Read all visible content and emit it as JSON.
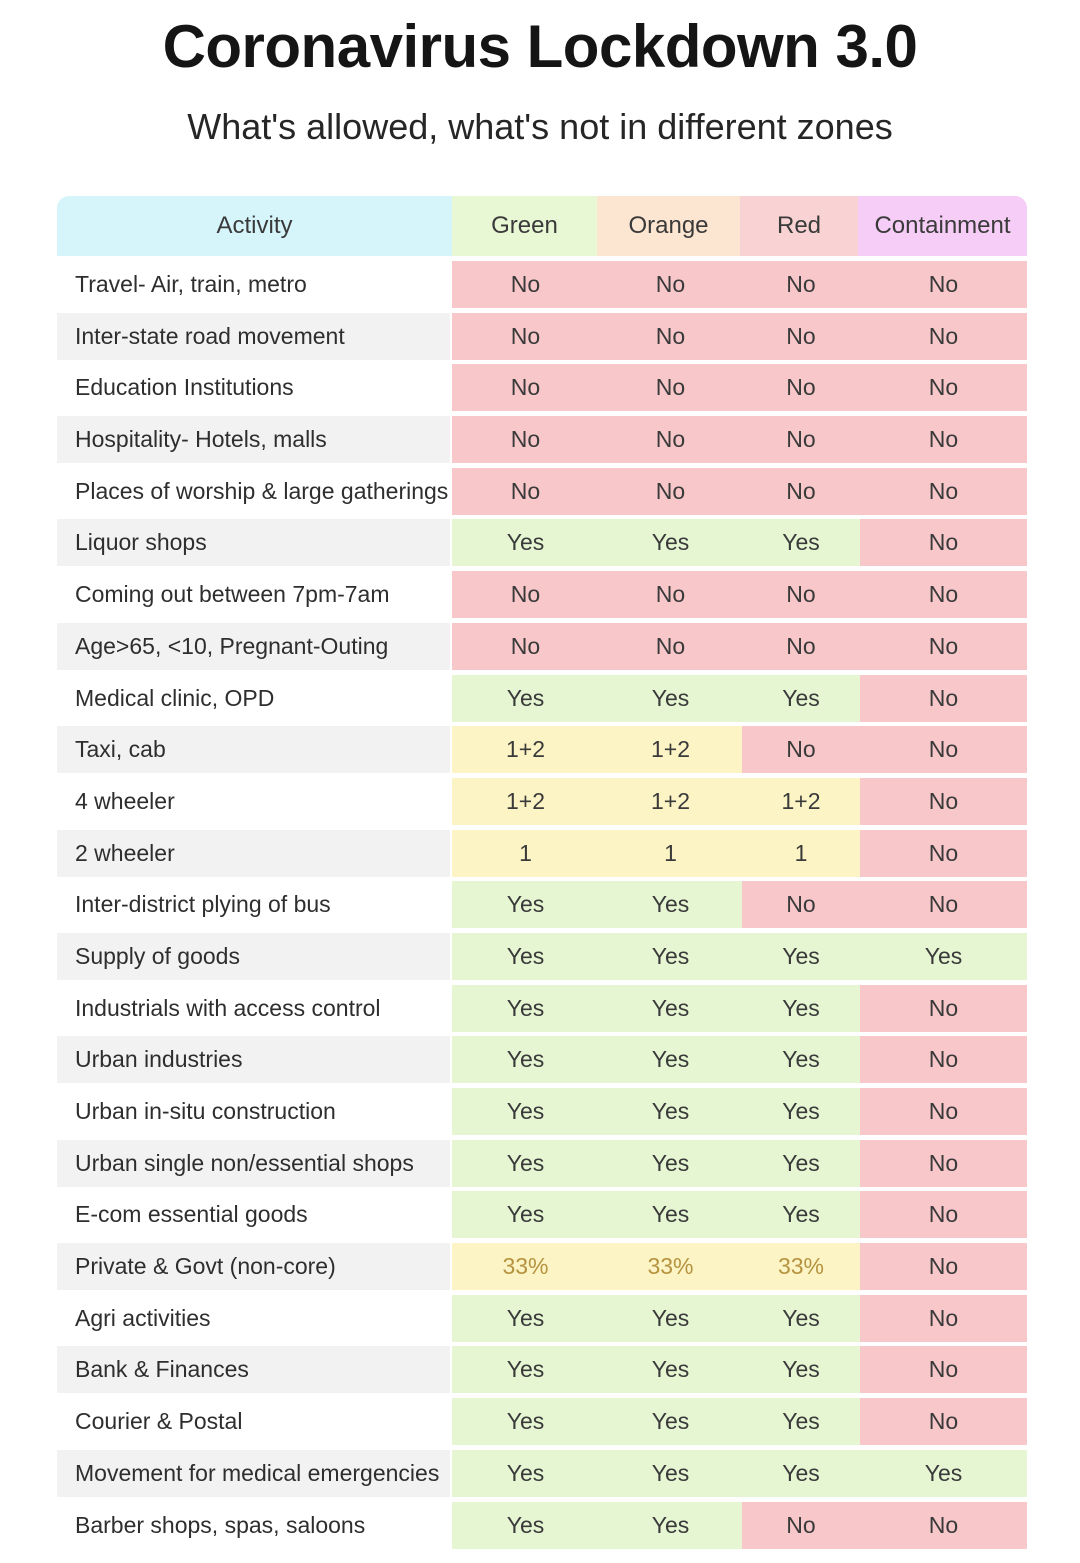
{
  "title": "Coronavirus Lockdown 3.0",
  "subtitle": "What's allowed, what's not in different zones",
  "headers": {
    "activity": "Activity",
    "green": "Green",
    "orange": "Orange",
    "red": "Red",
    "containment": "Containment"
  },
  "colors": {
    "no": "#f8c7ca",
    "yes": "#e6f6d3",
    "limited": "#fcf4c4"
  },
  "rows": [
    {
      "activity": "Travel- Air, train, metro",
      "values": [
        "No",
        "No",
        "No",
        "No"
      ]
    },
    {
      "activity": "Inter-state road movement",
      "values": [
        "No",
        "No",
        "No",
        "No"
      ]
    },
    {
      "activity": "Education Institutions",
      "values": [
        "No",
        "No",
        "No",
        "No"
      ]
    },
    {
      "activity": "Hospitality- Hotels, malls",
      "values": [
        "No",
        "No",
        "No",
        "No"
      ]
    },
    {
      "activity": "Places of worship & large gatherings",
      "values": [
        "No",
        "No",
        "No",
        "No"
      ]
    },
    {
      "activity": "Liquor shops",
      "values": [
        "Yes",
        "Yes",
        "Yes",
        "No"
      ]
    },
    {
      "activity": "Coming out between 7pm-7am",
      "values": [
        "No",
        "No",
        "No",
        "No"
      ]
    },
    {
      "activity": "Age>65, <10, Pregnant-Outing",
      "values": [
        "No",
        "No",
        "No",
        "No"
      ]
    },
    {
      "activity": "Medical clinic, OPD",
      "values": [
        "Yes",
        "Yes",
        "Yes",
        "No"
      ]
    },
    {
      "activity": "Taxi, cab",
      "values": [
        "1+2",
        "1+2",
        "No",
        "No"
      ]
    },
    {
      "activity": "4 wheeler",
      "values": [
        "1+2",
        "1+2",
        "1+2",
        "No"
      ]
    },
    {
      "activity": "2 wheeler",
      "values": [
        "1",
        "1",
        "1",
        "No"
      ]
    },
    {
      "activity": "Inter-district plying of bus",
      "values": [
        "Yes",
        "Yes",
        "No",
        "No"
      ]
    },
    {
      "activity": "Supply of goods",
      "values": [
        "Yes",
        "Yes",
        "Yes",
        "Yes"
      ]
    },
    {
      "activity": "Industrials with access control",
      "values": [
        "Yes",
        "Yes",
        "Yes",
        "No"
      ]
    },
    {
      "activity": "Urban industries",
      "values": [
        "Yes",
        "Yes",
        "Yes",
        "No"
      ]
    },
    {
      "activity": "Urban in-situ construction",
      "values": [
        "Yes",
        "Yes",
        "Yes",
        "No"
      ]
    },
    {
      "activity": "Urban single non/essential shops",
      "values": [
        "Yes",
        "Yes",
        "Yes",
        "No"
      ]
    },
    {
      "activity": "E-com essential goods",
      "values": [
        "Yes",
        "Yes",
        "Yes",
        "No"
      ]
    },
    {
      "activity": "Private & Govt (non-core)",
      "values": [
        "33%",
        "33%",
        "33%",
        "No"
      ]
    },
    {
      "activity": "Agri activities",
      "values": [
        "Yes",
        "Yes",
        "Yes",
        "No"
      ]
    },
    {
      "activity": "Bank & Finances",
      "values": [
        "Yes",
        "Yes",
        "Yes",
        "No"
      ]
    },
    {
      "activity": "Courier & Postal",
      "values": [
        "Yes",
        "Yes",
        "Yes",
        "No"
      ]
    },
    {
      "activity": "Movement for medical emergencies",
      "values": [
        "Yes",
        "Yes",
        "Yes",
        "Yes"
      ]
    },
    {
      "activity": "Barber shops, spas, saloons",
      "values": [
        "Yes",
        "Yes",
        "No",
        "No"
      ]
    }
  ]
}
